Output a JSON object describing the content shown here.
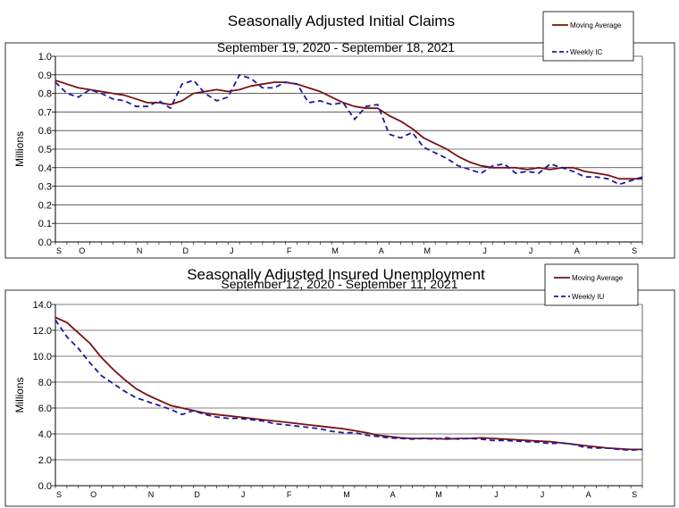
{
  "chart_data": [
    {
      "type": "line",
      "title": "Seasonally Adjusted Initial Claims",
      "subtitle": "September 19, 2020 - September 18, 2021",
      "ylabel": "Millions",
      "ylim": [
        0.0,
        1.0
      ],
      "yticks": [
        "0.0",
        "0.1",
        "0.2",
        "0.3",
        "0.4",
        "0.5",
        "0.6",
        "0.7",
        "0.8",
        "0.9",
        "1.0"
      ],
      "month_labels": [
        "S",
        "O",
        "N",
        "D",
        "J",
        "F",
        "M",
        "A",
        "M",
        "J",
        "J",
        "A",
        "S"
      ],
      "month_positions": [
        0,
        2,
        7,
        11,
        15,
        20,
        24,
        28,
        32,
        37,
        41,
        45,
        50
      ],
      "legend_position": "top-right",
      "series": [
        {
          "name": "Moving Average",
          "style": "solid",
          "color": "#7b1010",
          "values": [
            0.87,
            0.85,
            0.83,
            0.82,
            0.81,
            0.8,
            0.79,
            0.77,
            0.75,
            0.75,
            0.74,
            0.76,
            0.8,
            0.81,
            0.82,
            0.81,
            0.82,
            0.84,
            0.85,
            0.86,
            0.86,
            0.85,
            0.83,
            0.81,
            0.78,
            0.75,
            0.73,
            0.72,
            0.72,
            0.68,
            0.65,
            0.61,
            0.56,
            0.53,
            0.5,
            0.46,
            0.43,
            0.41,
            0.4,
            0.4,
            0.4,
            0.39,
            0.4,
            0.39,
            0.4,
            0.4,
            0.38,
            0.37,
            0.36,
            0.34,
            0.34,
            0.34
          ]
        },
        {
          "name": "Weekly IC",
          "style": "dashed",
          "color": "#1a1aa0",
          "values": [
            0.86,
            0.8,
            0.78,
            0.82,
            0.8,
            0.77,
            0.76,
            0.73,
            0.73,
            0.76,
            0.72,
            0.85,
            0.87,
            0.8,
            0.76,
            0.78,
            0.9,
            0.88,
            0.83,
            0.83,
            0.86,
            0.85,
            0.75,
            0.76,
            0.74,
            0.75,
            0.66,
            0.73,
            0.74,
            0.58,
            0.56,
            0.59,
            0.51,
            0.48,
            0.45,
            0.41,
            0.39,
            0.37,
            0.41,
            0.42,
            0.37,
            0.38,
            0.37,
            0.42,
            0.4,
            0.38,
            0.35,
            0.35,
            0.34,
            0.31,
            0.33,
            0.35
          ]
        }
      ]
    },
    {
      "type": "line",
      "title": "Seasonally Adjusted Insured Unemployment",
      "subtitle": "September 12, 2020 - September 11, 2021",
      "ylabel": "Millions",
      "ylim": [
        0.0,
        14.0
      ],
      "yticks": [
        "0.0",
        "2.0",
        "4.0",
        "6.0",
        "8.0",
        "10.0",
        "12.0",
        "14.0"
      ],
      "month_labels": [
        "S",
        "O",
        "N",
        "D",
        "J",
        "F",
        "M",
        "A",
        "M",
        "J",
        "J",
        "A",
        "S"
      ],
      "month_positions": [
        0,
        3,
        8,
        12,
        16,
        20,
        25,
        29,
        33,
        38,
        42,
        46,
        50
      ],
      "legend_position": "top-right",
      "series": [
        {
          "name": "Moving Average",
          "style": "solid",
          "color": "#7b1010",
          "values": [
            13.0,
            12.6,
            11.8,
            11.0,
            9.9,
            9.0,
            8.2,
            7.5,
            7.0,
            6.6,
            6.2,
            6.0,
            5.8,
            5.6,
            5.5,
            5.4,
            5.3,
            5.2,
            5.1,
            5.0,
            4.9,
            4.8,
            4.7,
            4.6,
            4.5,
            4.4,
            4.25,
            4.1,
            3.9,
            3.8,
            3.7,
            3.65,
            3.65,
            3.65,
            3.6,
            3.65,
            3.65,
            3.7,
            3.65,
            3.6,
            3.55,
            3.5,
            3.45,
            3.4,
            3.3,
            3.2,
            3.1,
            3.0,
            2.9,
            2.85,
            2.8,
            2.8
          ]
        },
        {
          "name": "Weekly IU",
          "style": "dashed",
          "color": "#1a1aa0",
          "values": [
            12.8,
            11.5,
            10.6,
            9.5,
            8.5,
            7.9,
            7.3,
            6.8,
            6.5,
            6.2,
            5.9,
            5.5,
            5.8,
            5.5,
            5.3,
            5.2,
            5.2,
            5.1,
            5.0,
            4.8,
            4.7,
            4.6,
            4.5,
            4.4,
            4.2,
            4.1,
            4.1,
            3.9,
            3.8,
            3.7,
            3.65,
            3.6,
            3.65,
            3.6,
            3.7,
            3.6,
            3.65,
            3.6,
            3.5,
            3.5,
            3.45,
            3.4,
            3.35,
            3.25,
            3.3,
            3.2,
            2.95,
            2.9,
            2.9,
            2.8,
            2.75,
            2.8
          ]
        }
      ]
    }
  ]
}
